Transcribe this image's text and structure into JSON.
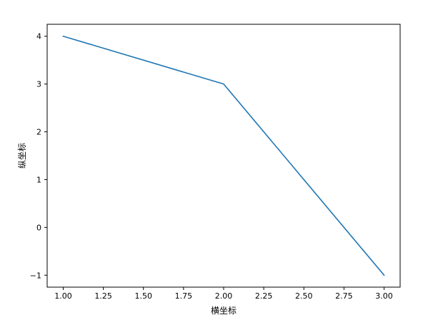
{
  "chart_data": {
    "type": "line",
    "title": "",
    "xlabel": "横坐标",
    "ylabel": "纵坐标",
    "x": [
      1,
      2,
      3
    ],
    "series": [
      {
        "values": [
          4,
          3,
          -1
        ],
        "color": "#1f77b4"
      }
    ],
    "xlim": [
      0.9,
      3.1
    ],
    "ylim": [
      -1.25,
      4.25
    ],
    "xticks": [
      1.0,
      1.25,
      1.5,
      1.75,
      2.0,
      2.25,
      2.5,
      2.75,
      3.0
    ],
    "xtick_labels": [
      "1.00",
      "1.25",
      "1.50",
      "1.75",
      "2.00",
      "2.25",
      "2.50",
      "2.75",
      "3.00"
    ],
    "yticks": [
      -1,
      0,
      1,
      2,
      3,
      4
    ],
    "ytick_labels": [
      "−1",
      "0",
      "1",
      "2",
      "3",
      "4"
    ],
    "grid": false,
    "legend": "none"
  }
}
